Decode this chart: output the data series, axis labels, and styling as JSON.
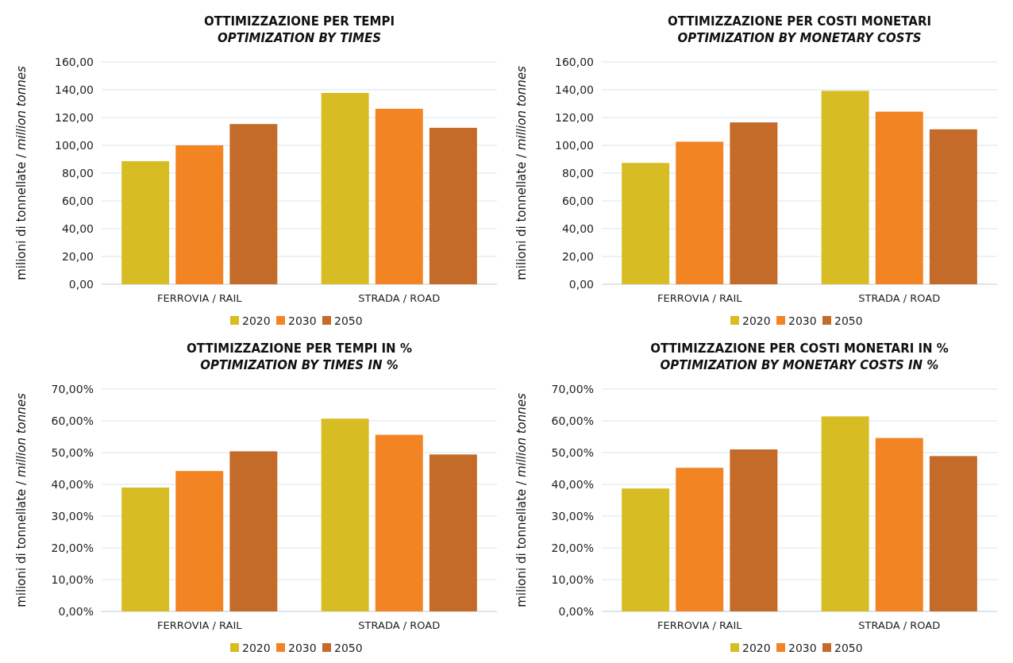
{
  "chart_data": [
    {
      "type": "bar",
      "title": "OTTIMIZZAZIONE PER TEMPI",
      "subtitle": "OPTIMIZATION BY TIMES",
      "ylabel": "milioni di tonnellate / million tonnes",
      "categories": [
        "FERROVIA / RAIL",
        "STRADA / ROAD"
      ],
      "series": [
        {
          "name": "2020",
          "color": "#d8bc24",
          "values": [
            88.6,
            137.7
          ]
        },
        {
          "name": "2030",
          "color": "#f28424",
          "values": [
            100.0,
            126.3
          ]
        },
        {
          "name": "2050",
          "color": "#c56b29",
          "values": [
            115.3,
            112.6
          ]
        }
      ],
      "ylim": [
        0,
        160
      ],
      "yticks": [
        {
          "value": 0,
          "label": "0,00"
        },
        {
          "value": 20,
          "label": "20,00"
        },
        {
          "value": 40,
          "label": "40,00"
        },
        {
          "value": 60,
          "label": "60,00"
        },
        {
          "value": 80,
          "label": "80,00"
        },
        {
          "value": 100,
          "label": "100,00"
        },
        {
          "value": 120,
          "label": "120,00"
        },
        {
          "value": 140,
          "label": "140,00"
        },
        {
          "value": 160,
          "label": "160,00"
        }
      ],
      "grid": "y",
      "legend": "bottom"
    },
    {
      "type": "bar",
      "title": "OTTIMIZZAZIONE PER COSTI MONETARI",
      "subtitle": "OPTIMIZATION BY MONETARY COSTS",
      "ylabel": "milioni di tonnellate / million tonnes",
      "categories": [
        "FERROVIA / RAIL",
        "STRADA / ROAD"
      ],
      "series": [
        {
          "name": "2020",
          "color": "#d8bc24",
          "values": [
            87.3,
            139.2
          ]
        },
        {
          "name": "2030",
          "color": "#f28424",
          "values": [
            102.6,
            124.2
          ]
        },
        {
          "name": "2050",
          "color": "#c56b29",
          "values": [
            116.5,
            111.5
          ]
        }
      ],
      "ylim": [
        0,
        160
      ],
      "yticks": [
        {
          "value": 0,
          "label": "0,00"
        },
        {
          "value": 20,
          "label": "20,00"
        },
        {
          "value": 40,
          "label": "40,00"
        },
        {
          "value": 60,
          "label": "60,00"
        },
        {
          "value": 80,
          "label": "80,00"
        },
        {
          "value": 100,
          "label": "100,00"
        },
        {
          "value": 120,
          "label": "120,00"
        },
        {
          "value": 140,
          "label": "140,00"
        },
        {
          "value": 160,
          "label": "160,00"
        }
      ],
      "grid": "y",
      "legend": "bottom"
    },
    {
      "type": "bar",
      "title": "OTTIMIZZAZIONE PER TEMPI IN %",
      "subtitle": "OPTIMIZATION BY TIMES IN %",
      "ylabel": "milioni di tonnellate / million tonnes",
      "categories": [
        "FERROVIA / RAIL",
        "STRADA / ROAD"
      ],
      "series": [
        {
          "name": "2020",
          "color": "#d8bc24",
          "values": [
            39.0,
            60.7
          ]
        },
        {
          "name": "2030",
          "color": "#f28424",
          "values": [
            44.2,
            55.6
          ]
        },
        {
          "name": "2050",
          "color": "#c56b29",
          "values": [
            50.4,
            49.4
          ]
        }
      ],
      "ylim": [
        0,
        70
      ],
      "yticks": [
        {
          "value": 0,
          "label": "0,00%"
        },
        {
          "value": 10,
          "label": "10,00%"
        },
        {
          "value": 20,
          "label": "20,00%"
        },
        {
          "value": 30,
          "label": "30,00%"
        },
        {
          "value": 40,
          "label": "40,00%"
        },
        {
          "value": 50,
          "label": "50,00%"
        },
        {
          "value": 60,
          "label": "60,00%"
        },
        {
          "value": 70,
          "label": "70,00%"
        }
      ],
      "grid": "y",
      "legend": "bottom"
    },
    {
      "type": "bar",
      "title": "OTTIMIZZAZIONE PER COSTI MONETARI IN %",
      "subtitle": "OPTIMIZATION BY MONETARY COSTS IN %",
      "ylabel": "milioni di tonnellate / million tonnes",
      "categories": [
        "FERROVIA / RAIL",
        "STRADA / ROAD"
      ],
      "series": [
        {
          "name": "2020",
          "color": "#d8bc24",
          "values": [
            38.7,
            61.4
          ]
        },
        {
          "name": "2030",
          "color": "#f28424",
          "values": [
            45.2,
            54.6
          ]
        },
        {
          "name": "2050",
          "color": "#c56b29",
          "values": [
            51.0,
            48.9
          ]
        }
      ],
      "ylim": [
        0,
        70
      ],
      "yticks": [
        {
          "value": 0,
          "label": "0,00%"
        },
        {
          "value": 10,
          "label": "10,00%"
        },
        {
          "value": 20,
          "label": "20,00%"
        },
        {
          "value": 30,
          "label": "30,00%"
        },
        {
          "value": 40,
          "label": "40,00%"
        },
        {
          "value": 50,
          "label": "50,00%"
        },
        {
          "value": 60,
          "label": "60,00%"
        },
        {
          "value": 70,
          "label": "70,00%"
        }
      ],
      "grid": "y",
      "legend": "bottom"
    }
  ]
}
